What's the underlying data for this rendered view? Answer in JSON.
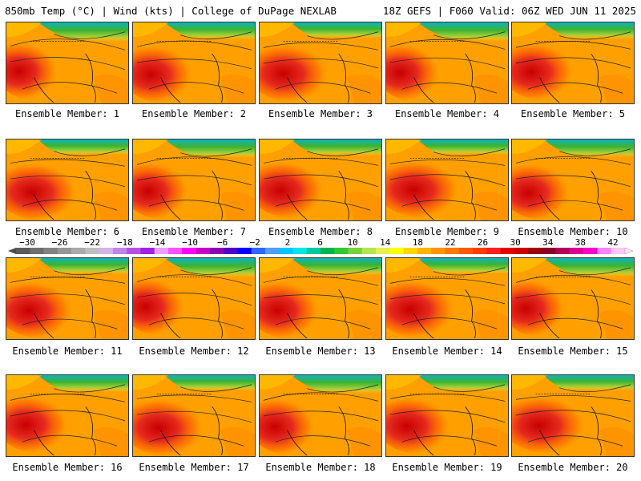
{
  "header": {
    "left": "850mb Temp (°C) | Wind (kts) | College of DuPage NEXLAB",
    "right": "18Z GEFS | F060 Valid: 06Z WED JUN 11 2025"
  },
  "members": [
    {
      "label": "Ensemble Member: 1"
    },
    {
      "label": "Ensemble Member: 2"
    },
    {
      "label": "Ensemble Member: 3"
    },
    {
      "label": "Ensemble Member: 4"
    },
    {
      "label": "Ensemble Member: 5"
    },
    {
      "label": "Ensemble Member: 6"
    },
    {
      "label": "Ensemble Member: 7"
    },
    {
      "label": "Ensemble Member: 8"
    },
    {
      "label": "Ensemble Member: 9"
    },
    {
      "label": "Ensemble Member: 10"
    },
    {
      "label": "Ensemble Member: 11"
    },
    {
      "label": "Ensemble Member: 12"
    },
    {
      "label": "Ensemble Member: 13"
    },
    {
      "label": "Ensemble Member: 14"
    },
    {
      "label": "Ensemble Member: 15"
    },
    {
      "label": "Ensemble Member: 16"
    },
    {
      "label": "Ensemble Member: 17"
    },
    {
      "label": "Ensemble Member: 18"
    },
    {
      "label": "Ensemble Member: 19"
    },
    {
      "label": "Ensemble Member: 20"
    }
  ],
  "colorbar": {
    "ticks": [
      "−30",
      "−26",
      "−22",
      "−18",
      "−14",
      "−10",
      "−6",
      "−2",
      "2",
      "6",
      "10",
      "14",
      "18",
      "22",
      "26",
      "30",
      "34",
      "38",
      "42"
    ],
    "colors": [
      "#5a5a5a",
      "#6e6e6e",
      "#828282",
      "#969696",
      "#aaaaaa",
      "#bebebe",
      "#d2b4e6",
      "#c382e6",
      "#b450e6",
      "#a020e6",
      "#e6a0ff",
      "#ff50ff",
      "#ff00ff",
      "#c800c8",
      "#8c00b4",
      "#5000c8",
      "#0000ff",
      "#3264ff",
      "#50a0ff",
      "#00c8ff",
      "#00e6e6",
      "#00c8a0",
      "#00b450",
      "#32c832",
      "#78d23c",
      "#b4e650",
      "#e6f050",
      "#ffff00",
      "#ffd700",
      "#ffb400",
      "#ff9600",
      "#ff7800",
      "#ff5a00",
      "#ff3c00",
      "#ff1e1e",
      "#e60000",
      "#c80000",
      "#a00000",
      "#8c0028",
      "#b4005a",
      "#dc0096",
      "#ff00c8",
      "#ff82ff",
      "#ffc8ff"
    ]
  }
}
